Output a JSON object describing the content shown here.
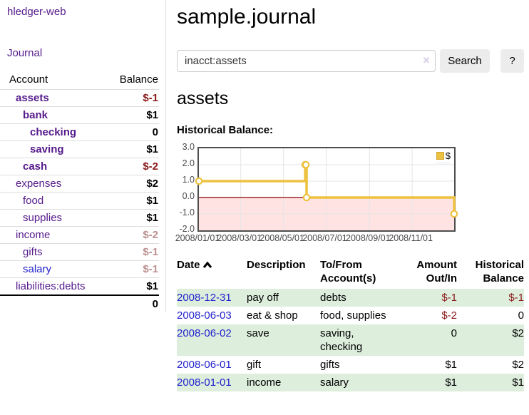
{
  "colors": {
    "accent_purple": "#551a8b",
    "link_blue": "#2222cc",
    "negative_strong": "#8b1a1a",
    "negative_soft": "#bc8f8f",
    "row_green": "#ddeedd",
    "chart_gold": "#edc240",
    "zero_line_red": "#8b0000"
  },
  "sidebar": {
    "app_title": "hledger-web",
    "nav_journal": "Journal",
    "accounts": {
      "headers": {
        "account": "Account",
        "balance": "Balance"
      },
      "rows": [
        {
          "name": "assets",
          "indent": 1,
          "bold": true,
          "balance": "$-1",
          "neg": "strong"
        },
        {
          "name": "bank",
          "indent": 2,
          "bold": true,
          "balance": "$1"
        },
        {
          "name": "checking",
          "indent": 3,
          "bold": true,
          "balance": "0"
        },
        {
          "name": "saving",
          "indent": 3,
          "bold": true,
          "balance": "$1"
        },
        {
          "name": "cash",
          "indent": 2,
          "bold": true,
          "balance": "$-2",
          "neg": "strong"
        },
        {
          "name": "expenses",
          "indent": 1,
          "bold": false,
          "balance": "$2"
        },
        {
          "name": "food",
          "indent": 2,
          "bold": false,
          "balance": "$1"
        },
        {
          "name": "supplies",
          "indent": 2,
          "bold": false,
          "balance": "$1"
        },
        {
          "name": "income",
          "indent": 1,
          "bold": false,
          "balance": "$-2",
          "neg": "soft"
        },
        {
          "name": "gifts",
          "indent": 2,
          "bold": false,
          "balance": "$-1",
          "neg": "soft"
        },
        {
          "name": "salary",
          "indent": 2,
          "bold": false,
          "balance": "$-1",
          "neg": "soft",
          "link_color": "blue"
        },
        {
          "name": "liabilities:debts",
          "indent": 1,
          "bold": false,
          "balance": "$1"
        }
      ],
      "total": "0"
    }
  },
  "header": {
    "title": "sample.journal"
  },
  "search": {
    "value": "inacct:assets",
    "clear_icon": "×",
    "button_label": "Search",
    "help_label": "?"
  },
  "account_page": {
    "heading": "assets",
    "chart_title": "Historical Balance:"
  },
  "chart_data": {
    "type": "line",
    "subtype": "step",
    "title": "Historical Balance:",
    "series": [
      {
        "name": "$",
        "color": "#edc240",
        "points": [
          {
            "date": "2008-01-01",
            "value": 1
          },
          {
            "date": "2008-06-01",
            "value": 2
          },
          {
            "date": "2008-06-02",
            "value": 2
          },
          {
            "date": "2008-06-03",
            "value": 0
          },
          {
            "date": "2008-12-31",
            "value": -1
          }
        ]
      }
    ],
    "xrange": [
      "2008-01-01",
      "2008-12-31"
    ],
    "ylim": [
      -2,
      3
    ],
    "y_ticks": [
      "3.0",
      "2.0",
      "1.0",
      "0.0",
      "-1.0",
      "-2.0"
    ],
    "x_ticks": [
      {
        "label": "2008/01/01",
        "f": 0
      },
      {
        "label": "2008/03/01",
        "f": 0.164
      },
      {
        "label": "2008/05/01",
        "f": 0.3315
      },
      {
        "label": "2008/07/01",
        "f": 0.4986
      },
      {
        "label": "2008/09/01",
        "f": 0.6685
      },
      {
        "label": "2008/11/01",
        "f": 0.8356
      }
    ],
    "legend": {
      "label": "$",
      "position": "top-right"
    },
    "grid": true,
    "negative_region_shaded": true,
    "zero_line_color": "#8b0000"
  },
  "register": {
    "sort": {
      "column": "date",
      "direction": "asc",
      "icon": "chevron-up"
    },
    "headers": {
      "date": "Date",
      "description": "Description",
      "tofrom": "To/From Account(s)",
      "amount": "Amount Out/In",
      "balance": "Historical Balance"
    },
    "rows": [
      {
        "date": "2008-12-31",
        "description": "pay off",
        "accounts": "debts",
        "amount": "$-1",
        "amount_neg": true,
        "balance": "$-1",
        "balance_neg": true
      },
      {
        "date": "2008-06-03",
        "description": "eat & shop",
        "accounts": "food, supplies",
        "amount": "$-2",
        "amount_neg": true,
        "balance": "0",
        "balance_neg": false
      },
      {
        "date": "2008-06-02",
        "description": "save",
        "accounts": "saving, checking",
        "amount": "0",
        "amount_neg": false,
        "balance": "$2",
        "balance_neg": false
      },
      {
        "date": "2008-06-01",
        "description": "gift",
        "accounts": "gifts",
        "amount": "$1",
        "amount_neg": false,
        "balance": "$2",
        "balance_neg": false
      },
      {
        "date": "2008-01-01",
        "description": "income",
        "accounts": "salary",
        "amount": "$1",
        "amount_neg": false,
        "balance": "$1",
        "balance_neg": false
      }
    ]
  }
}
